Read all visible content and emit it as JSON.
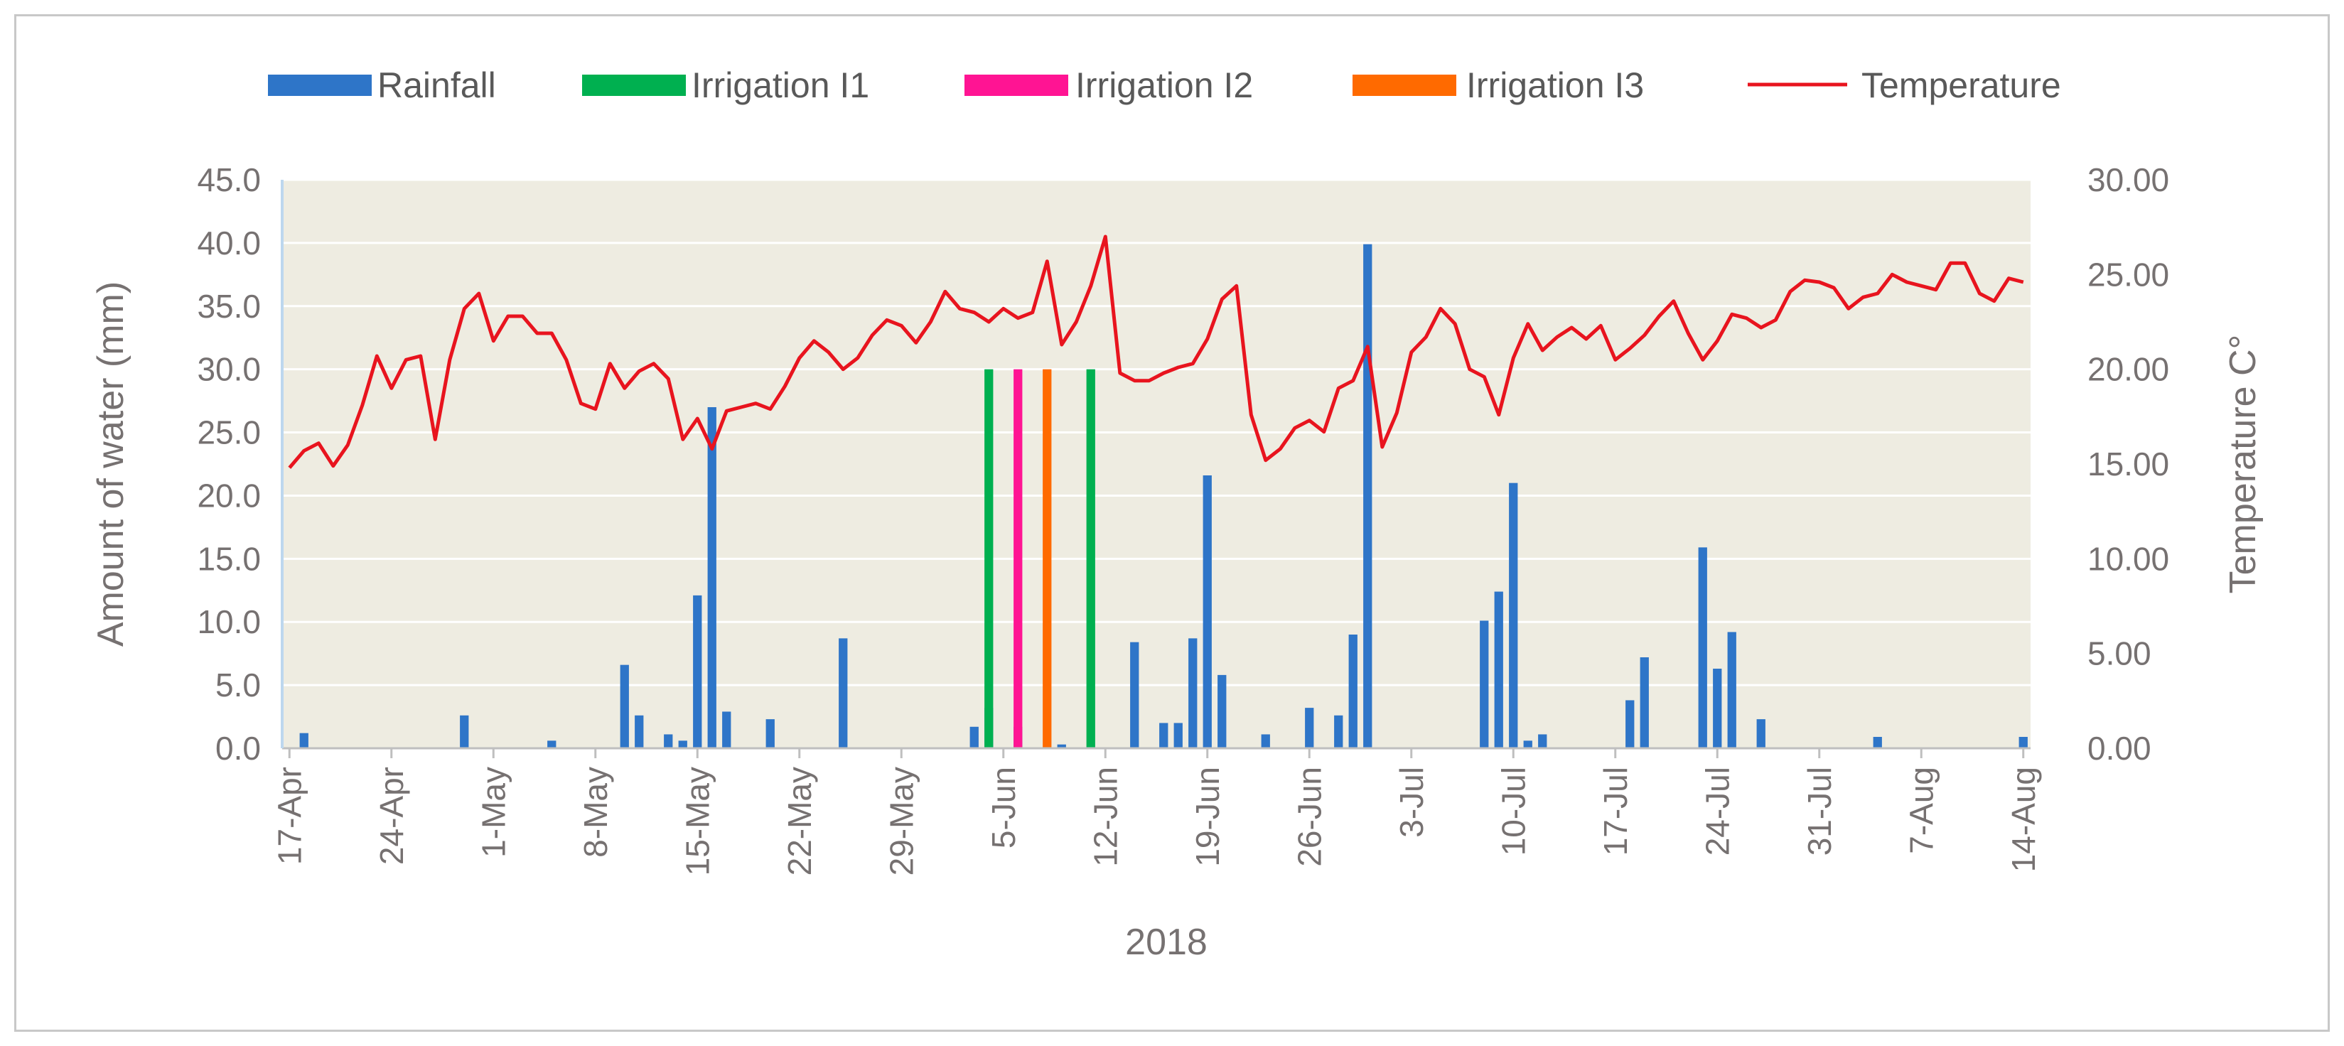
{
  "chart_data": {
    "type": "bar",
    "title": "",
    "xlabel": "2018",
    "ylabel": "Amount of water (mm)",
    "y2label": "Temperature C°",
    "ylim": [
      0,
      45
    ],
    "y2lim": [
      0,
      30
    ],
    "yticks": [
      "0.0",
      "5.0",
      "10.0",
      "15.0",
      "20.0",
      "25.0",
      "30.0",
      "35.0",
      "40.0",
      "45.0"
    ],
    "y2ticks": [
      "0.00",
      "5.00",
      "10.00",
      "15.00",
      "20.00",
      "25.00",
      "30.00"
    ],
    "x_start": "17-Apr",
    "day_count": 120,
    "xticks": [
      {
        "day": 0,
        "label": "17-Apr"
      },
      {
        "day": 7,
        "label": "24-Apr"
      },
      {
        "day": 14,
        "label": "1-May"
      },
      {
        "day": 21,
        "label": "8-May"
      },
      {
        "day": 28,
        "label": "15-May"
      },
      {
        "day": 35,
        "label": "22-May"
      },
      {
        "day": 42,
        "label": "29-May"
      },
      {
        "day": 49,
        "label": "5-Jun"
      },
      {
        "day": 56,
        "label": "12-Jun"
      },
      {
        "day": 63,
        "label": "19-Jun"
      },
      {
        "day": 70,
        "label": "26-Jun"
      },
      {
        "day": 77,
        "label": "3-Jul"
      },
      {
        "day": 84,
        "label": "10-Jul"
      },
      {
        "day": 91,
        "label": "17-Jul"
      },
      {
        "day": 98,
        "label": "24-Jul"
      },
      {
        "day": 105,
        "label": "31-Jul"
      },
      {
        "day": 112,
        "label": "7-Aug"
      },
      {
        "day": 119,
        "label": "14-Aug"
      }
    ],
    "legend": [
      {
        "name": "Rainfall",
        "color": "#2e75c8",
        "kind": "bar"
      },
      {
        "name": "Irrigation I1",
        "color": "#00b050",
        "kind": "bar"
      },
      {
        "name": "Irrigation I2",
        "color": "#ff1493",
        "kind": "bar"
      },
      {
        "name": "Irrigation I3",
        "color": "#ff6a00",
        "kind": "bar"
      },
      {
        "name": "Temperature",
        "color": "#e8141e",
        "kind": "line"
      }
    ],
    "series": [
      {
        "name": "Rainfall",
        "axis": "left",
        "points": [
          {
            "day": 1,
            "value": 1.2
          },
          {
            "day": 12,
            "value": 2.6
          },
          {
            "day": 18,
            "value": 0.6
          },
          {
            "day": 23,
            "value": 6.6
          },
          {
            "day": 24,
            "value": 2.6
          },
          {
            "day": 26,
            "value": 1.1
          },
          {
            "day": 27,
            "value": 0.6
          },
          {
            "day": 28,
            "value": 12.1
          },
          {
            "day": 29,
            "value": 27.0
          },
          {
            "day": 30,
            "value": 2.9
          },
          {
            "day": 33,
            "value": 2.3
          },
          {
            "day": 38,
            "value": 8.7
          },
          {
            "day": 47,
            "value": 1.7
          },
          {
            "day": 48,
            "value": 3.2
          },
          {
            "day": 50,
            "value": 1.7
          },
          {
            "day": 53,
            "value": 0.3
          },
          {
            "day": 58,
            "value": 8.4
          },
          {
            "day": 60,
            "value": 2.0
          },
          {
            "day": 61,
            "value": 2.0
          },
          {
            "day": 62,
            "value": 8.7
          },
          {
            "day": 63,
            "value": 21.6
          },
          {
            "day": 64,
            "value": 5.8
          },
          {
            "day": 67,
            "value": 1.1
          },
          {
            "day": 70,
            "value": 3.2
          },
          {
            "day": 72,
            "value": 2.6
          },
          {
            "day": 73,
            "value": 9.0
          },
          {
            "day": 74,
            "value": 39.9
          },
          {
            "day": 82,
            "value": 10.1
          },
          {
            "day": 83,
            "value": 12.4
          },
          {
            "day": 84,
            "value": 21.0
          },
          {
            "day": 85,
            "value": 0.6
          },
          {
            "day": 86,
            "value": 1.1
          },
          {
            "day": 92,
            "value": 3.8
          },
          {
            "day": 93,
            "value": 7.2
          },
          {
            "day": 97,
            "value": 15.9
          },
          {
            "day": 98,
            "value": 6.3
          },
          {
            "day": 99,
            "value": 9.2
          },
          {
            "day": 101,
            "value": 2.3
          },
          {
            "day": 109,
            "value": 0.9
          },
          {
            "day": 119,
            "value": 0.9
          }
        ]
      },
      {
        "name": "Irrigation I1",
        "axis": "left",
        "points": [
          {
            "day": 48,
            "value": 30.0
          },
          {
            "day": 55,
            "value": 30.0
          }
        ]
      },
      {
        "name": "Irrigation I2",
        "axis": "left",
        "points": [
          {
            "day": 50,
            "value": 30.0
          }
        ]
      },
      {
        "name": "Irrigation I3",
        "axis": "left",
        "points": [
          {
            "day": 52,
            "value": 30.0
          }
        ]
      },
      {
        "name": "Temperature",
        "axis": "right",
        "values": [
          14.8,
          15.7,
          16.1,
          14.9,
          16.0,
          18.1,
          20.7,
          19.0,
          20.5,
          20.7,
          16.3,
          20.5,
          23.2,
          24.0,
          21.5,
          22.8,
          22.8,
          21.9,
          21.9,
          20.5,
          18.2,
          17.9,
          20.3,
          19.0,
          19.9,
          20.3,
          19.5,
          16.3,
          17.4,
          15.8,
          17.8,
          18.0,
          18.2,
          17.9,
          19.1,
          20.6,
          21.5,
          20.9,
          20.0,
          20.6,
          21.8,
          22.6,
          22.3,
          21.4,
          22.5,
          24.1,
          23.2,
          23.0,
          22.5,
          23.2,
          22.7,
          23.0,
          25.7,
          21.3,
          22.5,
          24.4,
          27.0,
          19.8,
          19.4,
          19.4,
          19.8,
          20.1,
          20.3,
          21.6,
          23.7,
          24.4,
          17.6,
          15.2,
          15.8,
          16.9,
          17.3,
          16.7,
          19.0,
          19.4,
          21.2,
          15.9,
          17.7,
          20.9,
          21.7,
          23.2,
          22.4,
          20.0,
          19.6,
          17.6,
          20.6,
          22.4,
          21.0,
          21.7,
          22.2,
          21.6,
          22.3,
          20.5,
          21.1,
          21.8,
          22.8,
          23.6,
          21.9,
          20.5,
          21.5,
          22.9,
          22.7,
          22.2,
          22.6,
          24.1,
          24.7,
          24.6,
          24.3,
          23.2,
          23.8,
          24.0,
          25.0,
          24.6,
          24.4,
          24.2,
          25.6,
          25.6,
          24.0,
          23.6,
          24.8,
          24.6
        ]
      }
    ]
  }
}
